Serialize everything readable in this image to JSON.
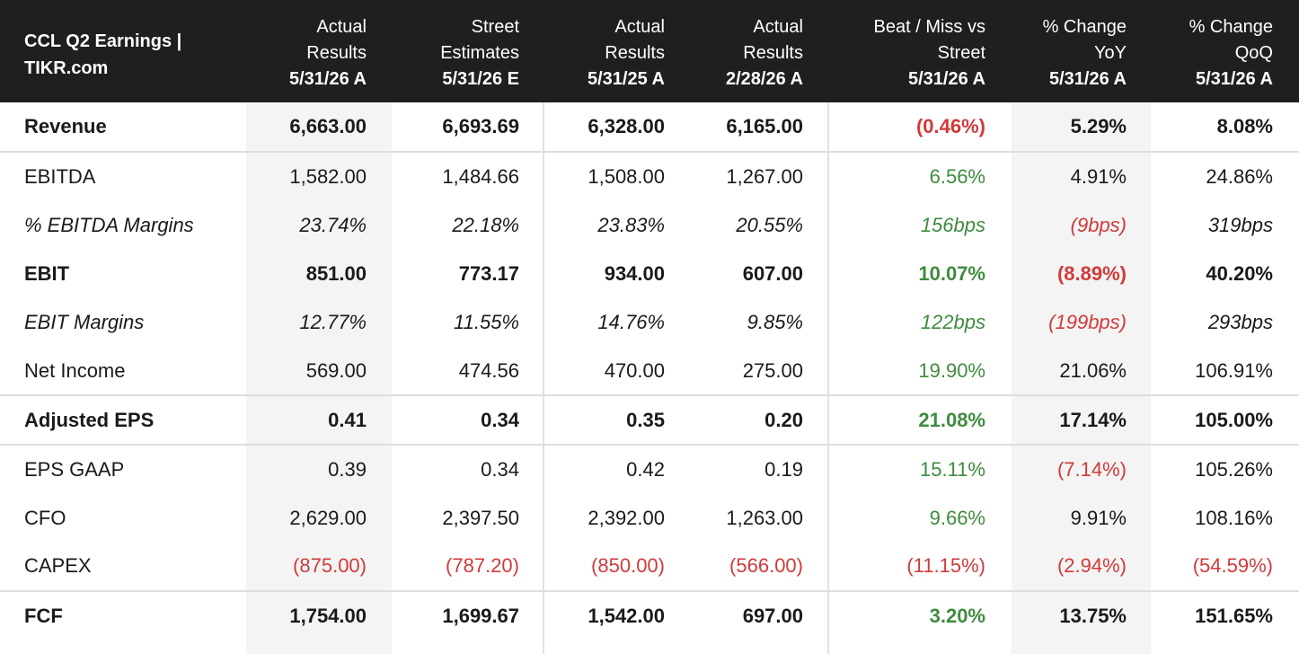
{
  "title_line1": "CCL Q2 Earnings |",
  "title_line2": "TIKR.com",
  "columns": [
    {
      "line1": "Actual",
      "line2": "Results",
      "date": "5/31/26 A"
    },
    {
      "line1": "Street",
      "line2": "Estimates",
      "date": "5/31/26 E"
    },
    {
      "line1": "Actual",
      "line2": "Results",
      "date": "5/31/25 A"
    },
    {
      "line1": "Actual",
      "line2": "Results",
      "date": "2/28/26 A"
    },
    {
      "line1": "Beat / Miss vs",
      "line2": "Street",
      "date": "5/31/26 A"
    },
    {
      "line1": "% Change",
      "line2": "YoY",
      "date": "5/31/26 A"
    },
    {
      "line1": "% Change",
      "line2": "QoQ",
      "date": "5/31/26 A"
    }
  ],
  "rows": [
    {
      "label": "Revenue",
      "values": [
        "6,663.00",
        "6,693.69",
        "6,328.00",
        "6,165.00",
        "(0.46%)",
        "5.29%",
        "8.08%"
      ]
    },
    {
      "label": "EBITDA",
      "values": [
        "1,582.00",
        "1,484.66",
        "1,508.00",
        "1,267.00",
        "6.56%",
        "4.91%",
        "24.86%"
      ]
    },
    {
      "label": "% EBITDA Margins",
      "values": [
        "23.74%",
        "22.18%",
        "23.83%",
        "20.55%",
        "156bps",
        "(9bps)",
        "319bps"
      ]
    },
    {
      "label": "EBIT",
      "values": [
        "851.00",
        "773.17",
        "934.00",
        "607.00",
        "10.07%",
        "(8.89%)",
        "40.20%"
      ]
    },
    {
      "label": "EBIT Margins",
      "values": [
        "12.77%",
        "11.55%",
        "14.76%",
        "9.85%",
        "122bps",
        "(199bps)",
        "293bps"
      ]
    },
    {
      "label": "Net Income",
      "values": [
        "569.00",
        "474.56",
        "470.00",
        "275.00",
        "19.90%",
        "21.06%",
        "106.91%"
      ]
    },
    {
      "label": "Adjusted EPS",
      "values": [
        "0.41",
        "0.34",
        "0.35",
        "0.20",
        "21.08%",
        "17.14%",
        "105.00%"
      ]
    },
    {
      "label": "EPS GAAP",
      "values": [
        "0.39",
        "0.34",
        "0.42",
        "0.19",
        "15.11%",
        "(7.14%)",
        "105.26%"
      ]
    },
    {
      "label": "CFO",
      "values": [
        "2,629.00",
        "2,397.50",
        "2,392.00",
        "1,263.00",
        "9.66%",
        "9.91%",
        "108.16%"
      ]
    },
    {
      "label": "CAPEX",
      "values": [
        "(875.00)",
        "(787.20)",
        "(850.00)",
        "(566.00)",
        "(11.15%)",
        "(2.94%)",
        "(54.59%)"
      ]
    },
    {
      "label": "FCF",
      "values": [
        "1,754.00",
        "1,699.67",
        "1,542.00",
        "697.00",
        "3.20%",
        "13.75%",
        "151.65%"
      ]
    }
  ],
  "colors": {
    "header_bg": "#1f1f1f",
    "positive": "#3f8b3f",
    "negative": "#d13a3a",
    "shaded": "#f4f4f4"
  }
}
